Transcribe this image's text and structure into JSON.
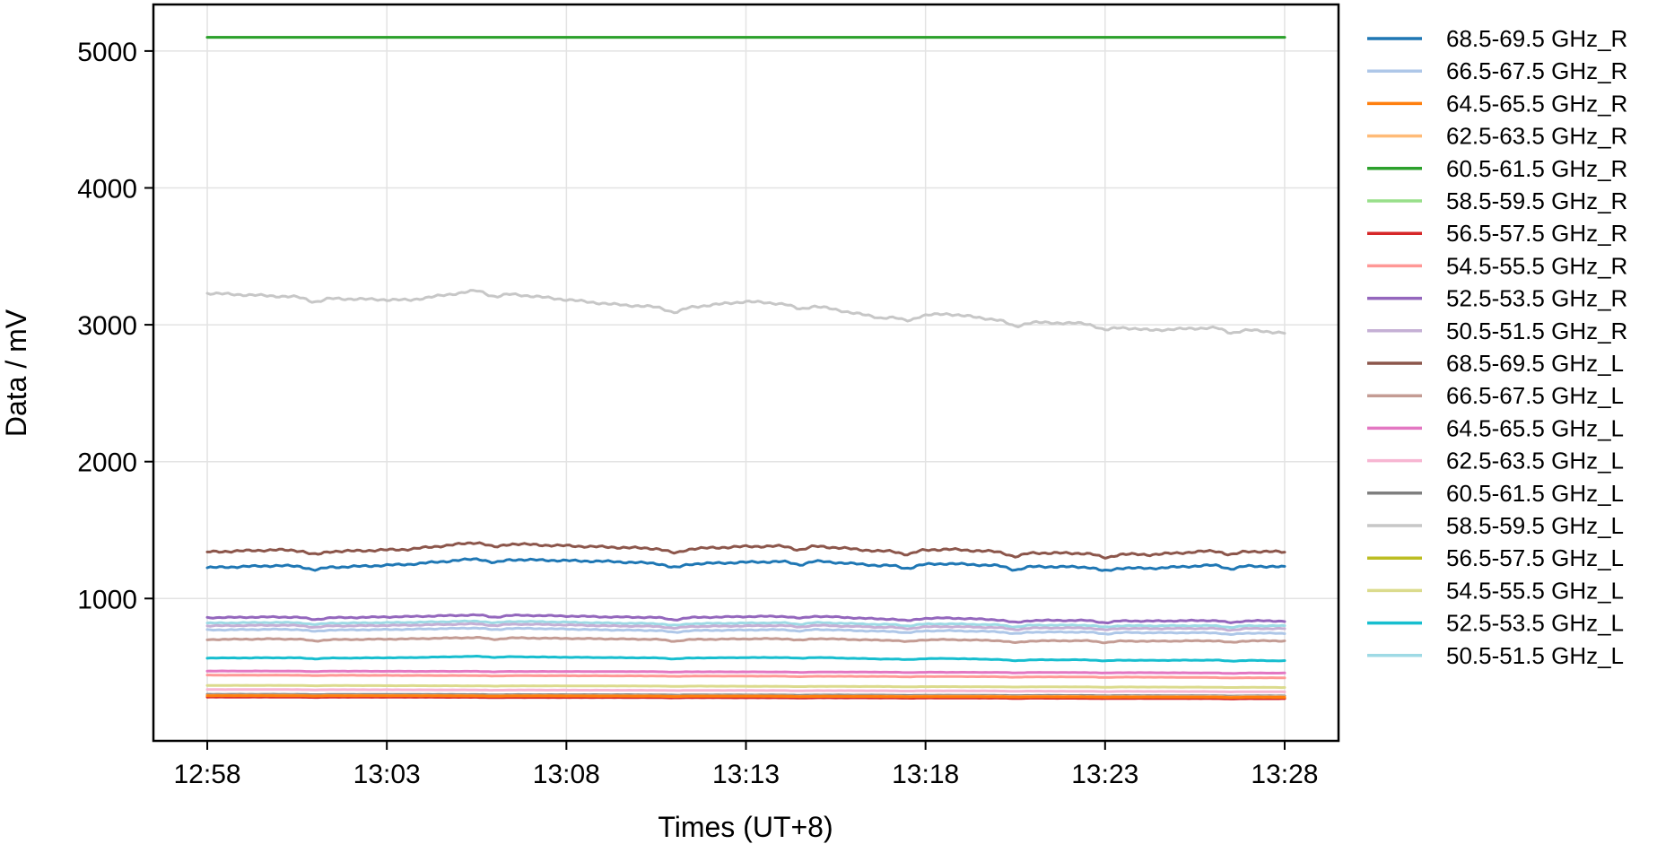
{
  "chart_data": {
    "type": "line",
    "title": "",
    "xlabel": "Times (UT+8)",
    "ylabel": "Data / mV",
    "xlim": [
      "12:56.5",
      "13:29.5"
    ],
    "ylim": [
      -40,
      5340
    ],
    "x_ticks": [
      "12:58",
      "13:03",
      "13:08",
      "13:13",
      "13:18",
      "13:23",
      "13:28"
    ],
    "y_ticks": [
      1000,
      2000,
      3000,
      4000,
      5000
    ],
    "grid": true,
    "legend_position": "outside-right",
    "x_range": [
      "12:58",
      "13:28"
    ],
    "dip_times": [
      "13:01",
      "13:06",
      "13:11",
      "13:14.5",
      "13:17.5",
      "13:20.5",
      "13:23",
      "13:26.5"
    ],
    "series": [
      {
        "name": "68.5-69.5 GHz_R",
        "color": "#1f77b4",
        "start": 1225,
        "end": 1230,
        "wobble": 25,
        "trend": [
          1225,
          1240,
          1230,
          1250,
          1290,
          1280,
          1270,
          1250,
          1265,
          1275,
          1240,
          1255,
          1235,
          1230,
          1220,
          1245,
          1230
        ]
      },
      {
        "name": "66.5-67.5 GHz_R",
        "color": "#aec7e8",
        "start": 760,
        "end": 740,
        "wobble": 12,
        "trend": [
          770,
          775,
          770,
          775,
          785,
          780,
          770,
          765,
          770,
          775,
          760,
          765,
          755,
          755,
          750,
          750,
          745
        ]
      },
      {
        "name": "64.5-65.5 GHz_R",
        "color": "#ff7f0e",
        "start": 290,
        "end": 278,
        "wobble": 2,
        "trend": [
          290,
          290,
          289,
          289,
          288,
          288,
          287,
          286,
          286,
          285,
          284,
          283,
          282,
          281,
          280,
          279,
          278
        ]
      },
      {
        "name": "62.5-63.5 GHz_R",
        "color": "#ffbb78",
        "start": 292,
        "end": 282,
        "wobble": 2,
        "trend": [
          292,
          292,
          291,
          291,
          290,
          290,
          289,
          288,
          288,
          287,
          286,
          286,
          285,
          284,
          283,
          283,
          282
        ]
      },
      {
        "name": "60.5-61.5 GHz_R",
        "color": "#2ca02c",
        "start": 5100,
        "end": 5100,
        "wobble": 0,
        "trend": [
          5100,
          5100
        ]
      },
      {
        "name": "58.5-59.5 GHz_R",
        "color": "#98df8a",
        "start": 5100,
        "end": 5100,
        "wobble": 0,
        "trend": [
          5100,
          5100
        ]
      },
      {
        "name": "56.5-57.5 GHz_R",
        "color": "#d62728",
        "start": 280,
        "end": 268,
        "wobble": 2,
        "trend": [
          280,
          280,
          279,
          279,
          278,
          277,
          277,
          276,
          275,
          275,
          274,
          273,
          272,
          271,
          270,
          269,
          268
        ]
      },
      {
        "name": "54.5-55.5 GHz_R",
        "color": "#ff9896",
        "start": 440,
        "end": 420,
        "wobble": 3,
        "trend": [
          440,
          440,
          439,
          438,
          437,
          436,
          435,
          434,
          433,
          432,
          431,
          430,
          428,
          427,
          425,
          423,
          420
        ]
      },
      {
        "name": "52.5-53.5 GHz_R",
        "color": "#9467bd",
        "start": 860,
        "end": 835,
        "wobble": 15,
        "trend": [
          860,
          865,
          860,
          868,
          880,
          875,
          865,
          860,
          868,
          872,
          850,
          858,
          840,
          840,
          835,
          840,
          835
        ]
      },
      {
        "name": "50.5-51.5 GHz_R",
        "color": "#c5b0d5",
        "start": 800,
        "end": 780,
        "wobble": 12,
        "trend": [
          800,
          805,
          800,
          805,
          815,
          810,
          800,
          795,
          800,
          805,
          790,
          795,
          785,
          785,
          780,
          782,
          780
        ]
      },
      {
        "name": "68.5-69.5 GHz_L",
        "color": "#8c564b",
        "start": 1340,
        "end": 1340,
        "wobble": 28,
        "trend": [
          1340,
          1355,
          1345,
          1360,
          1410,
          1390,
          1375,
          1360,
          1380,
          1385,
          1345,
          1360,
          1335,
          1330,
          1320,
          1350,
          1340
        ]
      },
      {
        "name": "66.5-67.5 GHz_L",
        "color": "#c49c94",
        "start": 700,
        "end": 690,
        "wobble": 12,
        "trend": [
          700,
          705,
          700,
          705,
          715,
          710,
          705,
          700,
          705,
          708,
          695,
          700,
          690,
          692,
          688,
          692,
          690
        ]
      },
      {
        "name": "64.5-65.5 GHz_L",
        "color": "#e377c2",
        "start": 470,
        "end": 455,
        "wobble": 3,
        "trend": [
          470,
          470,
          469,
          468,
          468,
          467,
          466,
          465,
          464,
          463,
          462,
          461,
          460,
          459,
          458,
          456,
          455
        ]
      },
      {
        "name": "62.5-63.5 GHz_L",
        "color": "#f7b6d2",
        "start": 335,
        "end": 318,
        "wobble": 2,
        "trend": [
          335,
          335,
          334,
          333,
          332,
          331,
          330,
          329,
          328,
          327,
          326,
          325,
          324,
          322,
          321,
          320,
          318
        ]
      },
      {
        "name": "60.5-61.5 GHz_L",
        "color": "#7f7f7f",
        "start": 300,
        "end": 288,
        "wobble": 2,
        "trend": [
          300,
          300,
          299,
          299,
          298,
          297,
          297,
          296,
          295,
          295,
          294,
          293,
          292,
          291,
          290,
          289,
          288
        ]
      },
      {
        "name": "58.5-59.5 GHz_L",
        "color": "#c7c7c7",
        "start": 3230,
        "end": 2940,
        "wobble": 30,
        "trend": [
          3230,
          3210,
          3190,
          3180,
          3250,
          3200,
          3150,
          3120,
          3170,
          3140,
          3050,
          3080,
          3020,
          3010,
          2960,
          2980,
          2940
        ]
      },
      {
        "name": "56.5-57.5 GHz_L",
        "color": "#bcbd22",
        "start": 285,
        "end": 272,
        "wobble": 2,
        "trend": [
          285,
          285,
          284,
          284,
          283,
          282,
          282,
          281,
          280,
          280,
          279,
          278,
          277,
          276,
          275,
          274,
          272
        ]
      },
      {
        "name": "54.5-55.5 GHz_L",
        "color": "#dbdb8d",
        "start": 365,
        "end": 350,
        "wobble": 2,
        "trend": [
          365,
          365,
          364,
          363,
          362,
          362,
          361,
          360,
          359,
          358,
          357,
          356,
          355,
          354,
          353,
          352,
          350
        ]
      },
      {
        "name": "52.5-53.5 GHz_L",
        "color": "#17becf",
        "start": 565,
        "end": 545,
        "wobble": 6,
        "trend": [
          565,
          567,
          565,
          568,
          578,
          572,
          568,
          565,
          568,
          570,
          558,
          562,
          552,
          552,
          548,
          550,
          545
        ]
      },
      {
        "name": "50.5-51.5 GHz_L",
        "color": "#9edae5",
        "start": 820,
        "end": 800,
        "wobble": 12,
        "trend": [
          820,
          825,
          820,
          825,
          835,
          830,
          820,
          815,
          820,
          825,
          810,
          815,
          805,
          805,
          800,
          802,
          800
        ]
      }
    ]
  }
}
